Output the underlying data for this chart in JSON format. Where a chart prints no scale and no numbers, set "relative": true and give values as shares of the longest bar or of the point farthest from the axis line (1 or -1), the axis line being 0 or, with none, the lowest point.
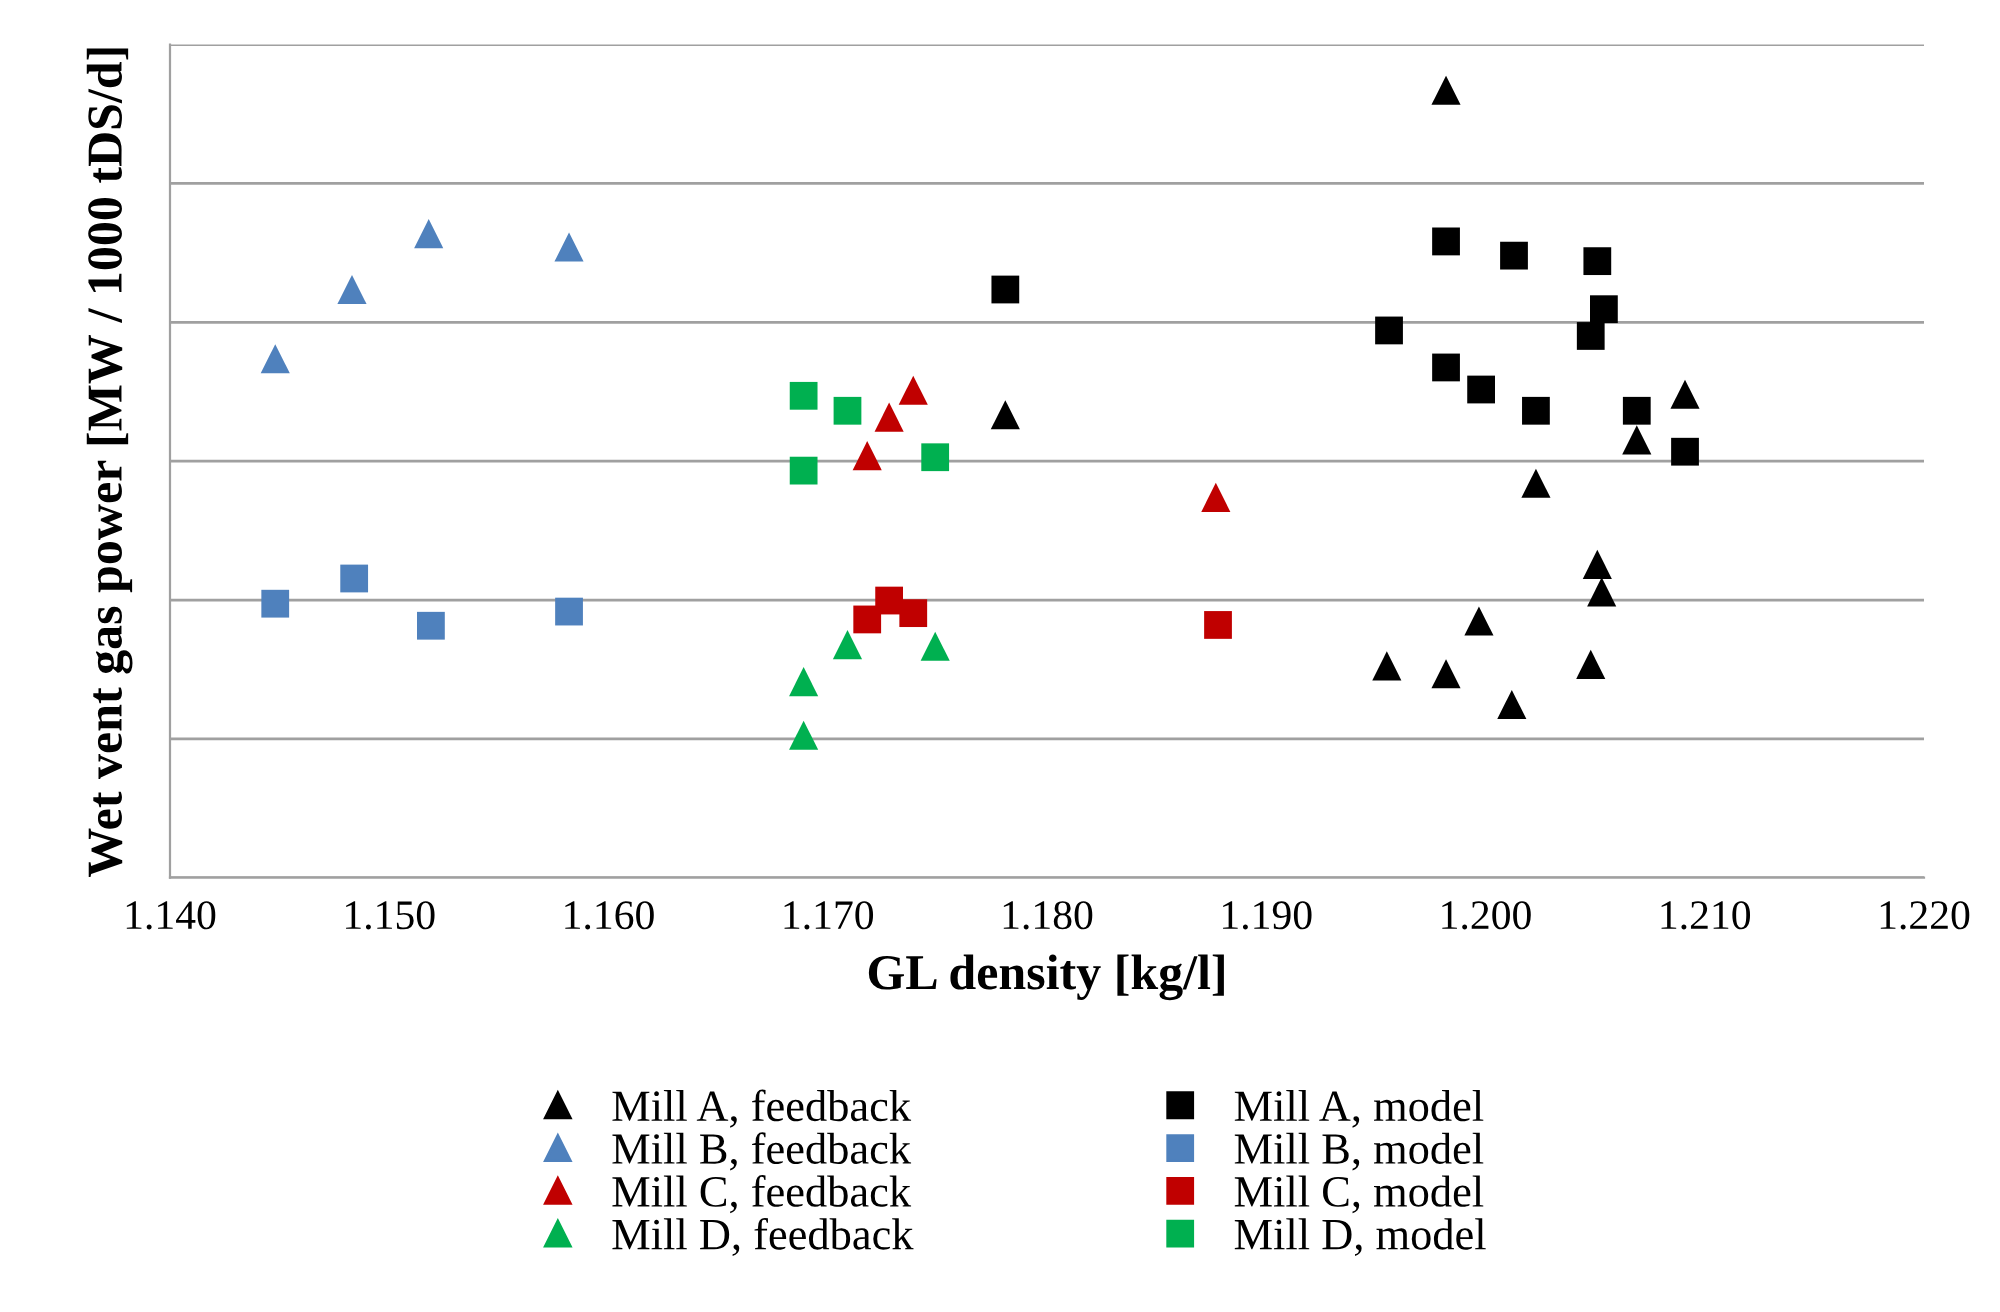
{
  "chart_data": {
    "type": "scatter",
    "xlabel": "GL density [kg/l]",
    "ylabel": "Wet vent gas power [MW / 1000 tDS/d]",
    "relative": true,
    "xlim": [
      1.14,
      1.22
    ],
    "xticks": [
      {
        "value": 1.14,
        "label": "1.140"
      },
      {
        "value": 1.15,
        "label": "1.150"
      },
      {
        "value": 1.16,
        "label": "1.160"
      },
      {
        "value": 1.17,
        "label": "1.170"
      },
      {
        "value": 1.18,
        "label": "1.180"
      },
      {
        "value": 1.19,
        "label": "1.190"
      },
      {
        "value": 1.2,
        "label": "1.200"
      },
      {
        "value": 1.21,
        "label": "1.210"
      },
      {
        "value": 1.22,
        "label": "1.220"
      }
    ],
    "grid": "y",
    "legend": "bottom",
    "series": [
      {
        "name": "Mill A, feedback",
        "color": "#000000",
        "marker": "triangle",
        "x": [
          1.1982,
          1.1781,
          1.2091,
          1.2069,
          1.2023,
          1.2051,
          1.2053,
          1.1997,
          1.1955,
          1.1982,
          1.2048,
          1.2012
        ],
        "values": [
          1.0,
          0.588,
          0.614,
          0.556,
          0.501,
          0.398,
          0.363,
          0.326,
          0.269,
          0.259,
          0.271,
          0.22
        ]
      },
      {
        "name": "Mill B, feedback",
        "color": "#4f81bd",
        "marker": "triangle",
        "x": [
          1.1448,
          1.1483,
          1.1518,
          1.1582
        ],
        "values": [
          0.659,
          0.747,
          0.818,
          0.801
        ]
      },
      {
        "name": "Mill C, feedback",
        "color": "#c00000",
        "marker": "triangle",
        "x": [
          1.1718,
          1.1728,
          1.1739,
          1.1877
        ],
        "values": [
          0.536,
          0.585,
          0.619,
          0.483
        ]
      },
      {
        "name": "Mill D, feedback",
        "color": "#00b050",
        "marker": "triangle",
        "x": [
          1.1689,
          1.1689,
          1.1709,
          1.1749
        ],
        "values": [
          0.249,
          0.181,
          0.296,
          0.294
        ]
      },
      {
        "name": "Mill A, model",
        "color": "#000000",
        "marker": "square",
        "x": [
          1.1781,
          1.1982,
          1.2013,
          1.2051,
          1.2054,
          1.2048,
          1.1956,
          1.1982,
          1.1998,
          1.2023,
          1.2069,
          1.2091
        ],
        "values": [
          0.747,
          0.808,
          0.79,
          0.783,
          0.722,
          0.688,
          0.695,
          0.648,
          0.62,
          0.593,
          0.593,
          0.541
        ]
      },
      {
        "name": "Mill B, model",
        "color": "#4f81bd",
        "marker": "square",
        "x": [
          1.1448,
          1.1484,
          1.1519,
          1.1582
        ],
        "values": [
          0.348,
          0.38,
          0.32,
          0.338
        ]
      },
      {
        "name": "Mill C, model",
        "color": "#c00000",
        "marker": "square",
        "x": [
          1.1718,
          1.1728,
          1.1739,
          1.1878
        ],
        "values": [
          0.328,
          0.352,
          0.336,
          0.321
        ]
      },
      {
        "name": "Mill D, model",
        "color": "#00b050",
        "marker": "square",
        "x": [
          1.1689,
          1.1709,
          1.1689,
          1.1749
        ],
        "values": [
          0.612,
          0.593,
          0.517,
          0.534
        ]
      }
    ]
  }
}
